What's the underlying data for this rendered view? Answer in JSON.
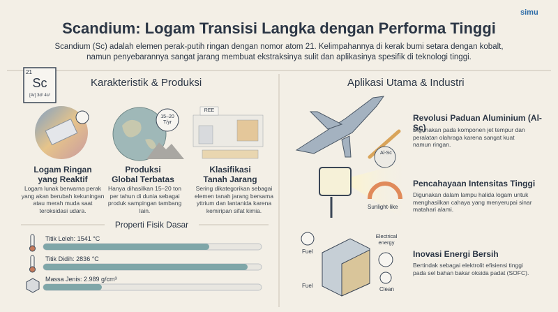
{
  "logo": "simu",
  "header": {
    "title": "Scandium: Logam Transisi Langka dengan Performa Tinggi",
    "intro": "Scandium (Sc) adalah elemen perak-putih ringan dengan nomor atom 21. Kelimpahannya di kerak bumi setara dengan kobalt, namun penyebarannya sangat jarang membuat ekstraksinya sulit dan aplikasinya spesifik di teknologi tinggi."
  },
  "element": {
    "number": "21",
    "symbol": "Sc",
    "config": "[Ar] 3d¹ 4s²"
  },
  "left": {
    "title": "Karakteristik & Produksi",
    "cards": [
      {
        "title": "Logam Ringan yang Reaktif",
        "text": "Logam lunak berwarna perak yang akan berubah kekuningan atau merah muda saat teroksidasi udara."
      },
      {
        "title": "Produksi Global Terbatas",
        "text": "Hanya dihasilkan 15–20 ton per tahun di dunia sebagai produk sampingan tambang lain.",
        "badge": "15–20",
        "badge_unit": "T/yr"
      },
      {
        "title": "Klasifikasi Tanah Jarang",
        "text": "Sering dikategorikan sebagai elemen tanah jarang bersama yttrium dan lantanida karena kemiripan sifat kimia.",
        "tag": "REE"
      }
    ],
    "properties_title": "Properti Fisik Dasar",
    "properties": [
      "Titik Leleh: 1541 °C",
      "Titik Didih: 2836 °C",
      "Massa Jenis: 2.989 g/cm³"
    ]
  },
  "right": {
    "title": "Aplikasi Utama & Industri",
    "apps": [
      {
        "title": "Revolusi Paduan Aluminium (Al-Sc)",
        "text": "Digunakan pada komponen jet tempur dan peralatan olahraga karena sangat kuat namun ringan.",
        "tag": "Al-Sc"
      },
      {
        "title": "Pencahayaan Intensitas Tinggi",
        "text": "Digunakan dalam lampu halida logam untuk menghasilkan cahaya yang menyerupai sinar matahari alami.",
        "tag": "Sunlight-like"
      },
      {
        "title": "Inovasi Energi Bersih",
        "text": "Bertindak sebagai elektrolit efisiensi tinggi pada sel bahan bakar oksida padat (SOFC).",
        "labels": [
          "Fuel",
          "Fuel",
          "Electrical energy",
          "Clean"
        ]
      }
    ]
  }
}
